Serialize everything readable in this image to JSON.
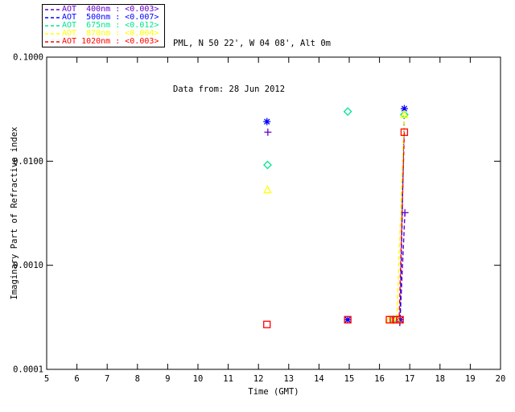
{
  "header": {
    "site_line": "PML, N 50 22', W 04 08', Alt 0m",
    "date_line": "Data from: 28 Jun 2012"
  },
  "chart_data": {
    "type": "scatter",
    "title": "PML, N 50 22', W 04 08', Alt 0m",
    "subtitle": "Data from: 28 Jun 2012",
    "xlabel": "Time (GMT)",
    "ylabel": "Imaginary Part of Refractive index",
    "xlim": [
      5,
      20
    ],
    "ylim": [
      0.0001,
      0.1
    ],
    "y_scale": "log",
    "grid": false,
    "legend_position": "top-left",
    "x_ticks": [
      "5",
      "6",
      "7",
      "8",
      "9",
      "10",
      "11",
      "12",
      "13",
      "14",
      "15",
      "16",
      "17",
      "18",
      "19",
      "20"
    ],
    "y_ticks": [
      {
        "value": 0.1,
        "label": "0.1000"
      },
      {
        "value": 0.01,
        "label": "0.0100"
      },
      {
        "value": 0.001,
        "label": "0.0010"
      },
      {
        "value": 0.0001,
        "label": "0.0001"
      }
    ],
    "series": [
      {
        "name": "AOT 400nm",
        "legend_label": "AOT  400nm : <0.003>",
        "mean_value": "<0.003>",
        "color": "#6600CC",
        "marker": "plus",
        "line_style": "dashed",
        "points": [
          [
            12.31,
            0.019
          ],
          [
            16.84,
            0.0032
          ]
        ],
        "line": [
          [
            16.84,
            0.0032
          ],
          [
            16.67,
            0.00026
          ]
        ]
      },
      {
        "name": "AOT 500nm",
        "legend_label": "AOT  500nm : <0.007>",
        "mean_value": "<0.007>",
        "color": "#0000FF",
        "marker": "asterisk",
        "line_style": "dashed",
        "points": [
          [
            12.28,
            0.024
          ],
          [
            14.95,
            0.0003
          ],
          [
            16.68,
            0.0003
          ],
          [
            16.82,
            0.032
          ]
        ],
        "line": [
          [
            16.82,
            0.032
          ],
          [
            16.68,
            0.0003
          ]
        ]
      },
      {
        "name": "AOT 675nm",
        "legend_label": "AOT  675nm : <0.012>",
        "mean_value": "<0.012>",
        "color": "#00E690",
        "marker": "diamond",
        "line_style": "dashed",
        "points": [
          [
            12.3,
            0.0092
          ],
          [
            14.95,
            0.03
          ],
          [
            16.46,
            0.0003
          ],
          [
            16.82,
            0.028
          ]
        ],
        "line": null
      },
      {
        "name": "AOT 870nm",
        "legend_label": "AOT  870nm : <0.004>",
        "mean_value": "<0.004>",
        "color": "#FFFF00",
        "marker": "triangle",
        "line_style": "dashed",
        "points": [
          [
            12.3,
            0.0053
          ],
          [
            16.33,
            0.0003
          ],
          [
            16.57,
            0.0003
          ],
          [
            16.82,
            0.028
          ]
        ],
        "line": [
          [
            16.82,
            0.028
          ],
          [
            16.57,
            0.0003
          ]
        ]
      },
      {
        "name": "AOT 1020nm",
        "legend_label": "AOT 1020nm : <0.003>",
        "mean_value": "<0.003>",
        "color": "#FF0000",
        "marker": "square",
        "line_style": "dashed",
        "points": [
          [
            12.28,
            0.00027
          ],
          [
            14.95,
            0.0003
          ],
          [
            16.33,
            0.0003
          ],
          [
            16.46,
            0.0003
          ],
          [
            16.57,
            0.0003
          ],
          [
            16.68,
            0.0003
          ],
          [
            16.82,
            0.019
          ]
        ],
        "line": [
          [
            16.82,
            0.019
          ],
          [
            16.65,
            0.0003
          ]
        ]
      }
    ]
  }
}
